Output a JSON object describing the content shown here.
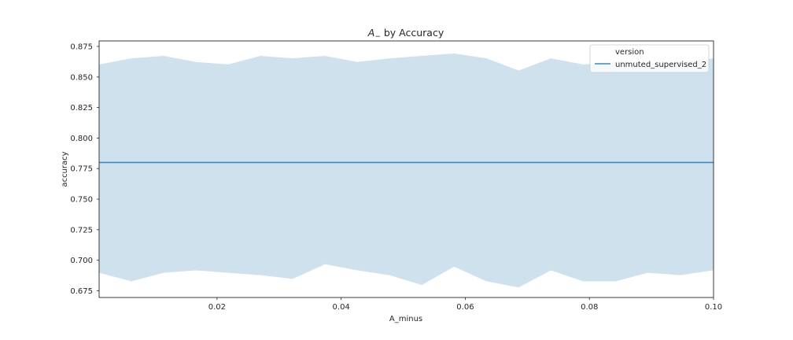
{
  "chart_data": {
    "type": "line",
    "title_main": "A",
    "title_sub": "−",
    "title_rest": " by Accuracy",
    "xlabel": "A_minus",
    "ylabel": "accuracy",
    "xlim": [
      0.001,
      0.1
    ],
    "ylim": [
      0.6695,
      0.8795
    ],
    "xticks": [
      0.02,
      0.04,
      0.06,
      0.08,
      0.1
    ],
    "xtick_labels": [
      "0.02",
      "0.04",
      "0.06",
      "0.08",
      "0.10"
    ],
    "yticks": [
      0.675,
      0.7,
      0.725,
      0.75,
      0.775,
      0.8,
      0.825,
      0.85,
      0.875
    ],
    "ytick_labels": [
      "0.675",
      "0.700",
      "0.725",
      "0.750",
      "0.775",
      "0.800",
      "0.825",
      "0.850",
      "0.875"
    ],
    "grid": false,
    "legend": {
      "title": "version",
      "placement": "top-right"
    },
    "series": [
      {
        "name": "unmuted_supervised_2",
        "color": "#3a88c4",
        "band_color": "#d0e1ee",
        "x": [
          0.001,
          0.1
        ],
        "y": [
          0.78,
          0.78
        ],
        "band_x": [
          0.001,
          0.0062,
          0.0114,
          0.0166,
          0.0218,
          0.027,
          0.0322,
          0.0374,
          0.0426,
          0.0478,
          0.053,
          0.0582,
          0.0634,
          0.0686,
          0.0738,
          0.079,
          0.0842,
          0.0894,
          0.0946,
          0.1
        ],
        "band_upper": [
          0.86,
          0.865,
          0.867,
          0.862,
          0.86,
          0.867,
          0.865,
          0.867,
          0.862,
          0.865,
          0.867,
          0.869,
          0.865,
          0.855,
          0.865,
          0.86,
          0.862,
          0.86,
          0.862,
          0.865
        ],
        "band_lower": [
          0.69,
          0.683,
          0.69,
          0.692,
          0.69,
          0.688,
          0.685,
          0.697,
          0.692,
          0.688,
          0.68,
          0.695,
          0.683,
          0.678,
          0.692,
          0.683,
          0.683,
          0.69,
          0.688,
          0.692
        ]
      }
    ]
  }
}
